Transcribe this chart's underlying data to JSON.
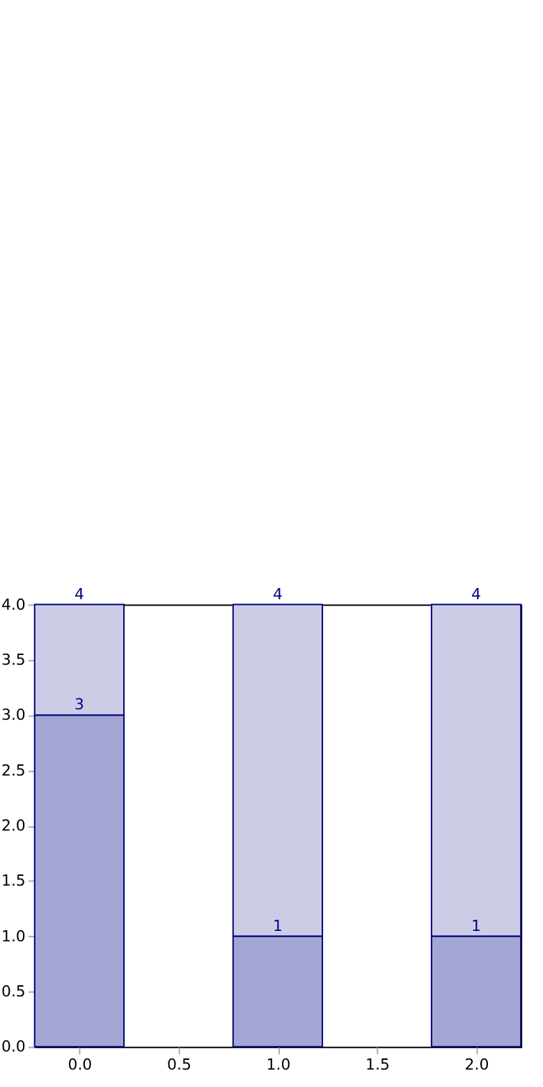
{
  "chart_data": {
    "type": "bar",
    "stacked": true,
    "x": [
      0,
      1,
      2
    ],
    "series": [
      {
        "color": "#a3a6d3",
        "values": [
          3,
          1,
          1
        ],
        "value_labels": [
          "3",
          "1",
          "1"
        ]
      },
      {
        "color": "#cccce6",
        "values": [
          1,
          3,
          3
        ]
      }
    ],
    "totals": [
      "4",
      "4",
      "4"
    ],
    "xlim": [
      -0.225,
      2.225
    ],
    "xticks": [
      {
        "value": 0,
        "label": "0.0"
      },
      {
        "value": 0.5,
        "label": "0.5"
      },
      {
        "value": 1,
        "label": "1.0"
      },
      {
        "value": 1.5,
        "label": "1.5"
      },
      {
        "value": 2,
        "label": "2.0"
      }
    ],
    "ylim": [
      0,
      4
    ],
    "yticks": [
      {
        "value": 0,
        "label": "0.0"
      },
      {
        "value": 0.5,
        "label": "0.5"
      },
      {
        "value": 1,
        "label": "1.0"
      },
      {
        "value": 1.5,
        "label": "1.5"
      },
      {
        "value": 2,
        "label": "2.0"
      },
      {
        "value": 2.5,
        "label": "2.5"
      },
      {
        "value": 3,
        "label": "3.0"
      },
      {
        "value": 3.5,
        "label": "3.5"
      },
      {
        "value": 4,
        "label": "4.0"
      }
    ],
    "grid": false,
    "legend": false
  }
}
